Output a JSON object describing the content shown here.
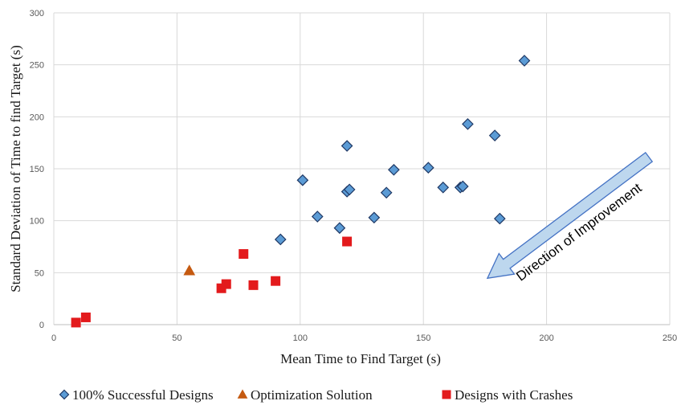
{
  "chart_data": {
    "type": "scatter",
    "title": "",
    "xlabel": "Mean Time to Find Target (s)",
    "ylabel": "Standard Deviation of Time to find Target (s)",
    "xlim": [
      0,
      250
    ],
    "ylim": [
      0,
      300
    ],
    "xticks": [
      "0",
      "50",
      "100",
      "150",
      "200",
      "250"
    ],
    "yticks": [
      "0",
      "50",
      "100",
      "150",
      "200",
      "250",
      "300"
    ],
    "grid": true,
    "legend_position": "bottom",
    "series": [
      {
        "name": "100% Successful Designs",
        "marker": "diamond",
        "color": "#5b9bd5",
        "edge": "#1f3864",
        "points": [
          [
            92,
            82
          ],
          [
            101,
            139
          ],
          [
            107,
            104
          ],
          [
            116,
            93
          ],
          [
            119,
            128
          ],
          [
            119,
            172
          ],
          [
            120,
            130
          ],
          [
            130,
            103
          ],
          [
            135,
            127
          ],
          [
            138,
            149
          ],
          [
            152,
            151
          ],
          [
            158,
            132
          ],
          [
            165,
            132
          ],
          [
            166,
            133
          ],
          [
            168,
            193
          ],
          [
            179,
            182
          ],
          [
            181,
            102
          ],
          [
            191,
            254
          ]
        ]
      },
      {
        "name": "Optimization Solution",
        "marker": "triangle",
        "color": "#c55a11",
        "edge": "#c55a11",
        "points": [
          [
            55,
            52
          ]
        ]
      },
      {
        "name": "Designs with Crashes",
        "marker": "square",
        "color": "#e31a1c",
        "edge": "#e31a1c",
        "points": [
          [
            9,
            2
          ],
          [
            13,
            7
          ],
          [
            68,
            35
          ],
          [
            70,
            39
          ],
          [
            77,
            68
          ],
          [
            81,
            38
          ],
          [
            90,
            42
          ],
          [
            119,
            80
          ]
        ]
      }
    ],
    "annotation": {
      "text": "Direction of Improvement",
      "arrow_from": [
        235,
        155
      ],
      "arrow_to": [
        175,
        50
      ],
      "color": "#bdd7ee"
    }
  }
}
